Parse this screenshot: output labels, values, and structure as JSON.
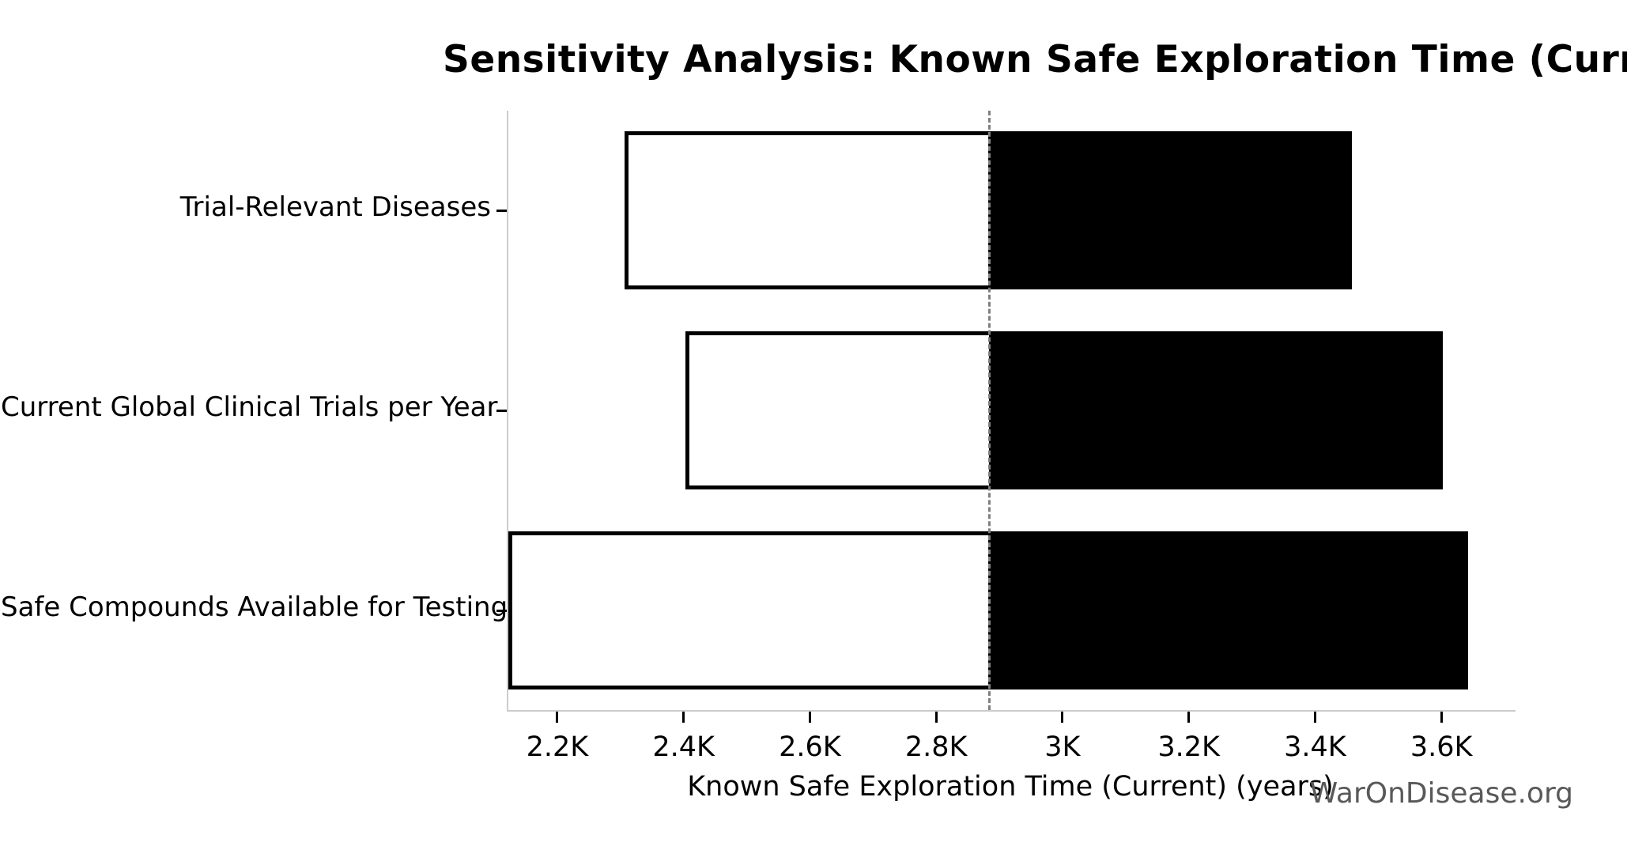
{
  "title": "Sensitivity Analysis: Known Safe Exploration Time (Current)",
  "watermark": "WarOnDisease.org",
  "chart_data": {
    "type": "bar",
    "orientation": "horizontal",
    "title": "Sensitivity Analysis: Known Safe Exploration Time (Current)",
    "xlabel": "Known Safe Exploration Time (Current) (years)",
    "ylabel": "",
    "categories": [
      "Trial-Relevant Diseases",
      "Current Global Clinical Trials per Year",
      "Safe Compounds Available for Testing"
    ],
    "series": [
      {
        "name": "sensitivity-range",
        "bars": [
          {
            "label": "Trial-Relevant Diseases",
            "low": 2304,
            "high": 3456
          },
          {
            "label": "Current Global Clinical Trials per Year",
            "low": 2400,
            "high": 3600
          },
          {
            "label": "Safe Compounds Available for Testing",
            "low": 2120,
            "high": 3640
          }
        ]
      }
    ],
    "baseline_value": 2880,
    "xlim": [
      2120,
      3715
    ],
    "xticks": [
      2200,
      2400,
      2600,
      2800,
      3000,
      3200,
      3400,
      3600
    ],
    "xtick_labels": [
      "2.2K",
      "2.4K",
      "2.6K",
      "2.8K",
      "3K",
      "3.2K",
      "3.4K",
      "3.6K"
    ],
    "grid": false,
    "legend": "none",
    "colors": {
      "low_side_fill": "#ffffff",
      "high_side_fill": "#000000",
      "bar_edge": "#000000",
      "baseline_line": "#808080",
      "spine": "#cccccc",
      "tick": "#000000",
      "watermark_text": "#595959"
    }
  }
}
